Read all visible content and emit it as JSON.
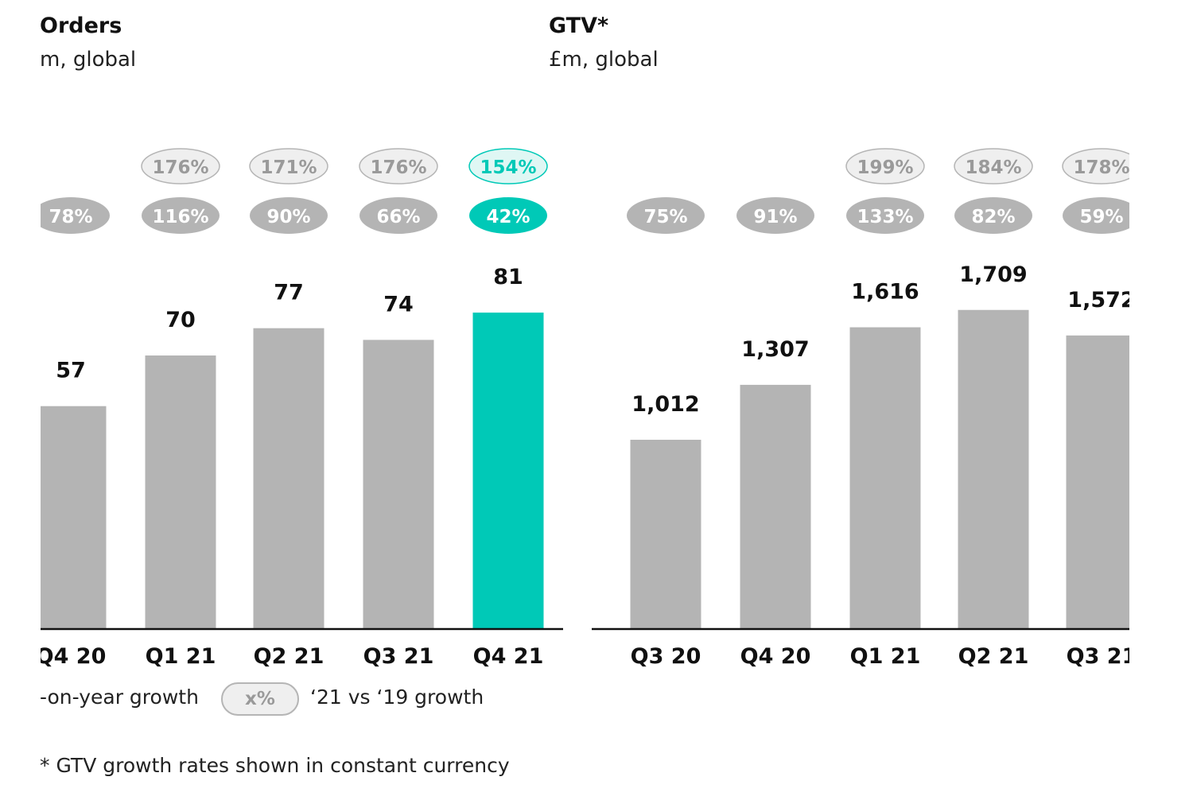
{
  "chart_data": [
    {
      "type": "bar",
      "title": "Orders",
      "subtitle": "m, global",
      "categories": [
        "Q4 20",
        "Q1 21",
        "Q2 21",
        "Q3 21",
        "Q4 21"
      ],
      "values": [
        57,
        70,
        77,
        74,
        81
      ],
      "value_labels": [
        "57",
        "70",
        "77",
        "74",
        "81"
      ],
      "yoy_growth": [
        "78%",
        "116%",
        "90%",
        "66%",
        "42%"
      ],
      "vs_2019_growth": [
        null,
        "176%",
        "171%",
        "176%",
        "154%"
      ],
      "highlight_index": 4
    },
    {
      "type": "bar",
      "title": "GTV*",
      "subtitle": "£m, global",
      "categories": [
        "Q3 20",
        "Q4 20",
        "Q1 21",
        "Q2 21",
        "Q3 21"
      ],
      "values": [
        1012,
        1307,
        1616,
        1709,
        1572
      ],
      "value_labels": [
        "1,012",
        "1,307",
        "1,616",
        "1,709",
        "1,572"
      ],
      "yoy_growth": [
        "75%",
        "91%",
        "133%",
        "82%",
        "59%"
      ],
      "vs_2019_growth": [
        null,
        null,
        "199%",
        "184%",
        "178%"
      ],
      "highlight_index": null
    }
  ],
  "legend": {
    "yoy_label": "-on-year growth",
    "pill_label": "x%",
    "vs_2019_label": "‘21 vs ‘19 growth"
  },
  "footnote": "* GTV growth rates shown in constant currency",
  "colors": {
    "bar": "#b4b4b4",
    "highlight": "#00c9b7",
    "pill_fill": "#b4b4b4",
    "pill_outline_fill": "#efefef",
    "pill_outline_stroke": "#b5b5b5",
    "highlight_pill_fill": "#dff7f4"
  }
}
